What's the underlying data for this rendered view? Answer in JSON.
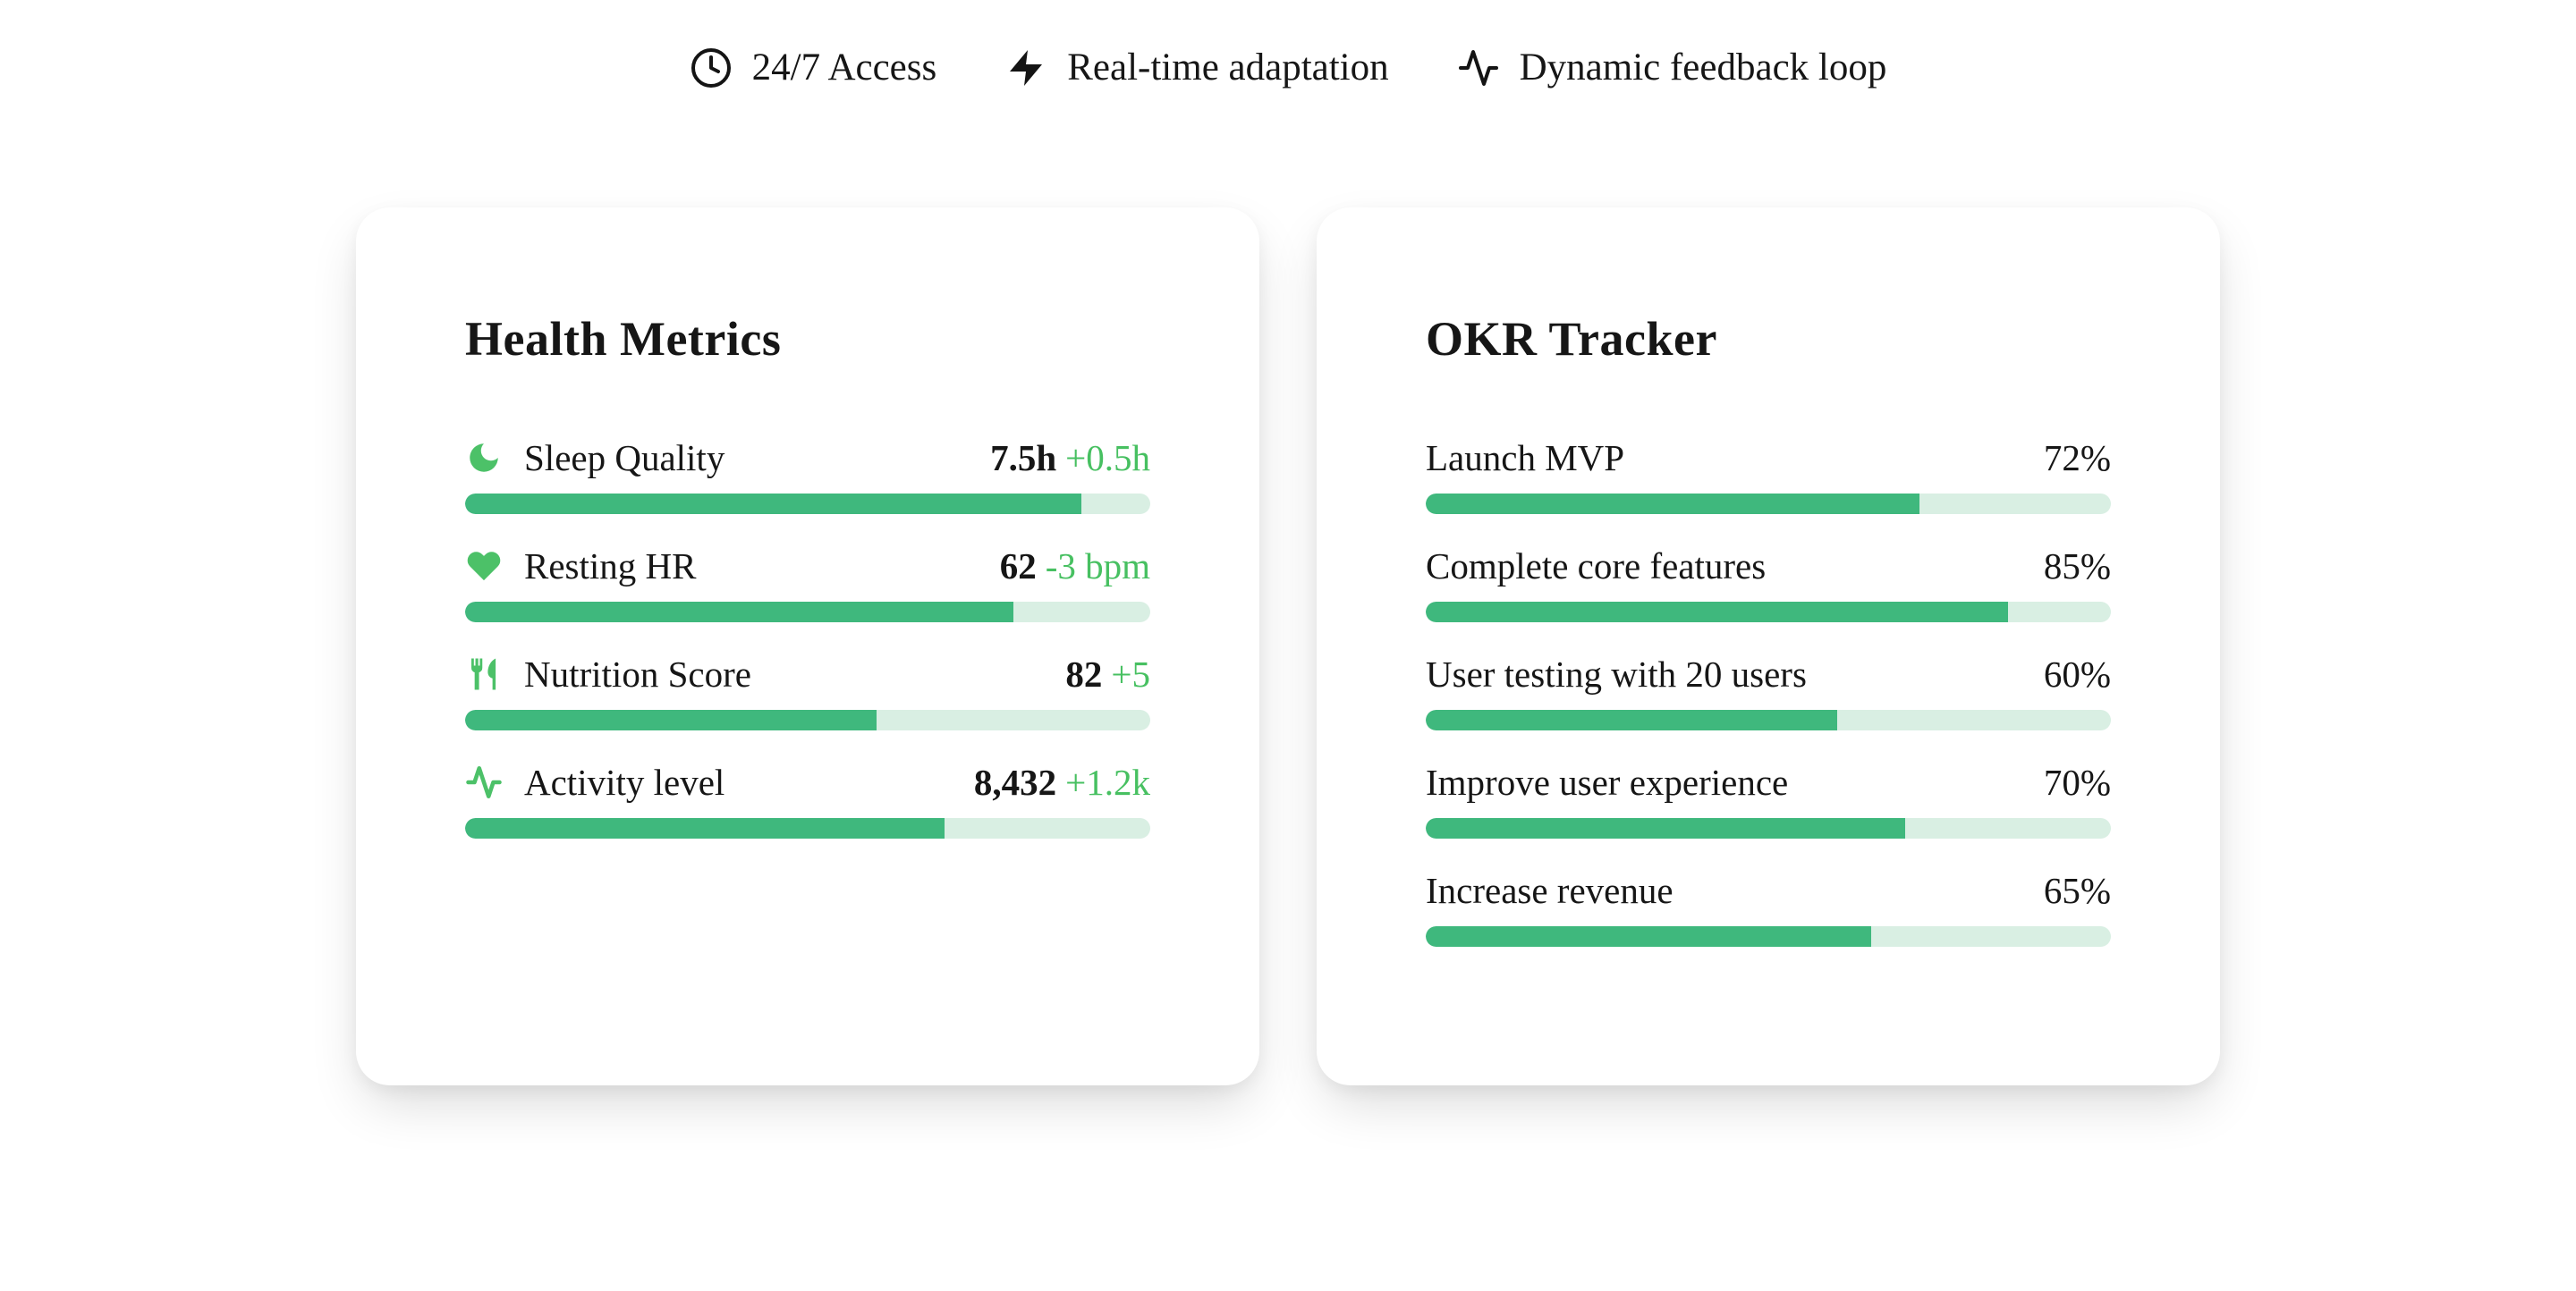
{
  "header": {
    "features": [
      {
        "icon": "clock",
        "label": "24/7 Access"
      },
      {
        "icon": "zap",
        "label": "Real-time adaptation"
      },
      {
        "icon": "activity",
        "label": "Dynamic feedback loop"
      }
    ]
  },
  "cards": [
    {
      "title": "Health Metrics",
      "value_bold": true,
      "rows": [
        {
          "icon": "moon",
          "label": "Sleep Quality",
          "value": "7.5h",
          "delta": "+0.5h",
          "percent": 90
        },
        {
          "icon": "heart",
          "label": "Resting HR",
          "value": "62",
          "delta": "-3 bpm",
          "percent": 80
        },
        {
          "icon": "utensils",
          "label": "Nutrition Score",
          "value": "82",
          "delta": "+5",
          "percent": 60
        },
        {
          "icon": "pulse",
          "label": "Activity level",
          "value": "8,432",
          "delta": "+1.2k",
          "percent": 70
        }
      ]
    },
    {
      "title": "OKR Tracker",
      "value_bold": false,
      "rows": [
        {
          "label": "Launch MVP",
          "value": "72%",
          "percent": 72
        },
        {
          "label": "Complete core features",
          "value": "85%",
          "percent": 85
        },
        {
          "label": "User testing with 20 users",
          "value": "60%",
          "percent": 60
        },
        {
          "label": "Improve user experience",
          "value": "70%",
          "percent": 70
        },
        {
          "label": "Increase revenue",
          "value": "65%",
          "percent": 65
        }
      ]
    }
  ],
  "colors": {
    "bar_fill": "#3fb87d",
    "bar_track": "#d9efe3",
    "delta_text": "#47c061",
    "icon_green": "#4cc168",
    "text": "#161616",
    "background": "#ffffff"
  }
}
